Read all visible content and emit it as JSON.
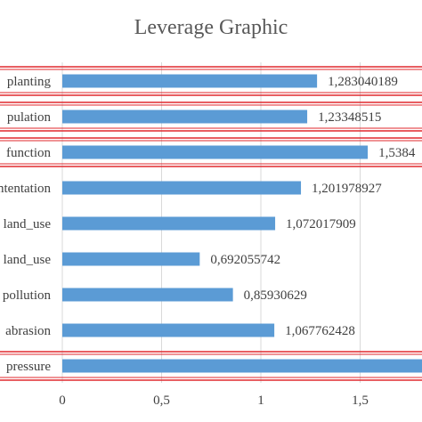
{
  "chart_data": {
    "type": "bar",
    "orientation": "horizontal",
    "title": "Leverage Graphic",
    "categories": [
      "planting",
      "pulation",
      "function",
      "ntentation",
      "land_use",
      "land_use",
      "pollution",
      "abrasion",
      "pressure"
    ],
    "values": [
      1.283040189,
      1.23348515,
      1.5384,
      1.201978927,
      1.072017909,
      0.692055742,
      0.85930629,
      1.067762428,
      1.85
    ],
    "data_labels": [
      "1,283040189",
      "1,23348515",
      "1,5384",
      "1,201978927",
      "1,072017909",
      "0,692055742",
      "0,85930629",
      "1,067762428",
      ""
    ],
    "highlighted": [
      true,
      true,
      true,
      false,
      false,
      false,
      false,
      false,
      true
    ],
    "x_ticks": [
      "0",
      "0,5",
      "1",
      "1,5"
    ],
    "xlim": [
      0,
      1.8
    ],
    "grid": true,
    "bar_color": "#5b9bd5",
    "highlight_color": "#e0282e",
    "grid_color": "#d9d9d9",
    "text_color": "#404040"
  }
}
